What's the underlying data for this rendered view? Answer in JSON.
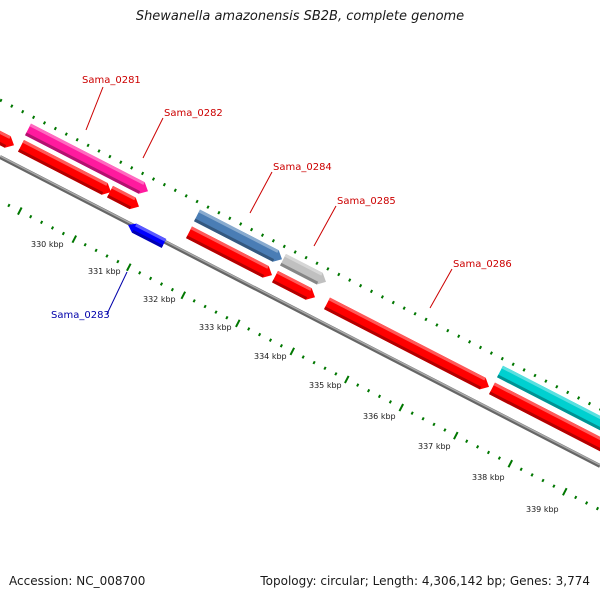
{
  "title": "Shewanella amazonensis SB2B, complete genome",
  "footer": {
    "accession": "Accession: NC_008700",
    "summary": "Topology: circular; Length: 4,306,142 bp; Genes: 3,774"
  },
  "colors": {
    "forward_strand": "#ff0000",
    "reverse_strand": "#0000ff",
    "backbone": "#808080",
    "tick": "#007700"
  },
  "genes": [
    {
      "name": "Sama_0281",
      "color": "#ff1a9e",
      "label_color": "#cc0000"
    },
    {
      "name": "Sama_0282",
      "color": "#ff0000",
      "label_color": "#cc0000"
    },
    {
      "name": "Sama_0283",
      "color": "#0000ff",
      "label_color": "#0000aa"
    },
    {
      "name": "Sama_0284",
      "color": "#4a7db5",
      "label_color": "#cc0000"
    },
    {
      "name": "Sama_0285",
      "color": "#c0c0c0",
      "label_color": "#cc0000"
    },
    {
      "name": "Sama_0286",
      "color": "#ff0000",
      "label_color": "#cc0000"
    },
    {
      "name": "",
      "color": "#00d0d0",
      "label_color": "#cc0000"
    }
  ],
  "ruler": [
    "330 kbp",
    "331 kbp",
    "332 kbp",
    "333 kbp",
    "334 kbp",
    "335 kbp",
    "336 kbp",
    "337 kbp",
    "338 kbp",
    "339 kbp"
  ]
}
